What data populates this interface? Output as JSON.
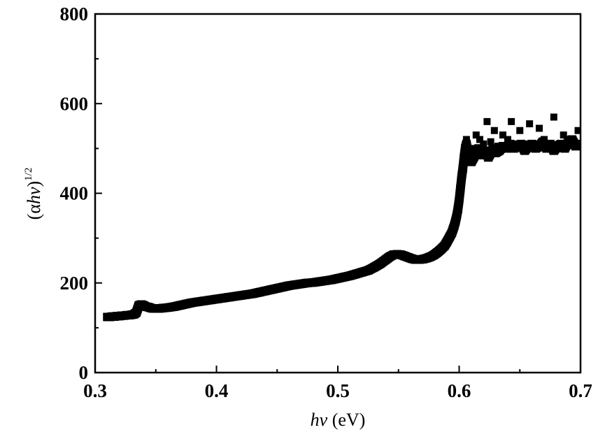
{
  "chart_data": {
    "type": "scatter",
    "title": "",
    "xlabel": {
      "italic": "hν",
      "rest": " (eV)"
    },
    "ylabel": {
      "prefix": "(α",
      "italic": "hν",
      "suffix": ")",
      "sup": "1/2"
    },
    "xlim": [
      0.3,
      0.7
    ],
    "ylim": [
      0,
      800
    ],
    "x_ticks": [
      0.3,
      0.4,
      0.5,
      0.6,
      0.7
    ],
    "x_tick_labels": [
      "0.3",
      "0.4",
      "0.5",
      "0.6",
      "0.7"
    ],
    "y_ticks": [
      0,
      200,
      400,
      600,
      800
    ],
    "y_tick_labels": [
      "0",
      "200",
      "400",
      "600",
      "800"
    ],
    "grid": false,
    "legend": false,
    "marker": "square",
    "color": "#000000",
    "series": [
      {
        "x": [
          0.31,
          0.312,
          0.314,
          0.316,
          0.318,
          0.32,
          0.322,
          0.324,
          0.326,
          0.328,
          0.33,
          0.332,
          0.334,
          0.336,
          0.338,
          0.34,
          0.342,
          0.344,
          0.346,
          0.348,
          0.35,
          0.353,
          0.356,
          0.36,
          0.365,
          0.37,
          0.375,
          0.38,
          0.385,
          0.39,
          0.395,
          0.4,
          0.405,
          0.41,
          0.415,
          0.42,
          0.425,
          0.43,
          0.435,
          0.44,
          0.445,
          0.45,
          0.455,
          0.46,
          0.465,
          0.47,
          0.475,
          0.48,
          0.485,
          0.49,
          0.495,
          0.5,
          0.505,
          0.51,
          0.515,
          0.52,
          0.525,
          0.53,
          0.535,
          0.54,
          0.543,
          0.546,
          0.549,
          0.552,
          0.555,
          0.558,
          0.561,
          0.564,
          0.567,
          0.57,
          0.573,
          0.576,
          0.579,
          0.582,
          0.585,
          0.588,
          0.59,
          0.592,
          0.594,
          0.595,
          0.596,
          0.597,
          0.598,
          0.599,
          0.6,
          0.601,
          0.602,
          0.603,
          0.604,
          0.605,
          0.606,
          0.607,
          0.608,
          0.609,
          0.61,
          0.612,
          0.614,
          0.616,
          0.618,
          0.62,
          0.622,
          0.624,
          0.626,
          0.628,
          0.63,
          0.633,
          0.636,
          0.639,
          0.642,
          0.645,
          0.648,
          0.651,
          0.654,
          0.657,
          0.66,
          0.663,
          0.666,
          0.669,
          0.672,
          0.675,
          0.678,
          0.681,
          0.684,
          0.687,
          0.69,
          0.693,
          0.696,
          0.699,
          0.606,
          0.61,
          0.614,
          0.617,
          0.62,
          0.623,
          0.626,
          0.629,
          0.632,
          0.636,
          0.64,
          0.643,
          0.646,
          0.65,
          0.654,
          0.658,
          0.662,
          0.666,
          0.67,
          0.674,
          0.678,
          0.682,
          0.686,
          0.69,
          0.694,
          0.698
        ],
        "y": [
          124,
          124,
          125,
          125,
          126,
          126,
          127,
          127,
          128,
          128,
          129,
          130,
          134,
          150,
          152,
          150,
          147,
          146,
          144,
          143,
          143,
          143,
          144,
          145,
          147,
          150,
          153,
          156,
          158,
          160,
          162,
          164,
          166,
          168,
          170,
          172,
          174,
          176,
          179,
          182,
          185,
          188,
          191,
          194,
          196,
          198,
          200,
          201,
          203,
          205,
          207,
          210,
          213,
          216,
          220,
          224,
          228,
          235,
          243,
          253,
          259,
          263,
          264,
          263,
          260,
          257,
          254,
          252,
          252,
          253,
          255,
          258,
          262,
          268,
          275,
          283,
          292,
          302,
          312,
          320,
          328,
          338,
          350,
          365,
          385,
          410,
          435,
          455,
          480,
          500,
          510,
          495,
          480,
          475,
          470,
          480,
          490,
          500,
          485,
          490,
          495,
          480,
          490,
          500,
          490,
          495,
          505,
          500,
          510,
          500,
          505,
          510,
          495,
          505,
          510,
          500,
          505,
          515,
          500,
          510,
          495,
          505,
          510,
          500,
          515,
          520,
          505,
          510,
          520,
          500,
          530,
          520,
          510,
          560,
          515,
          540,
          505,
          530,
          520,
          560,
          510,
          540,
          510,
          555,
          505,
          545,
          520,
          510,
          570,
          500,
          530,
          520,
          510,
          540
        ]
      }
    ]
  }
}
